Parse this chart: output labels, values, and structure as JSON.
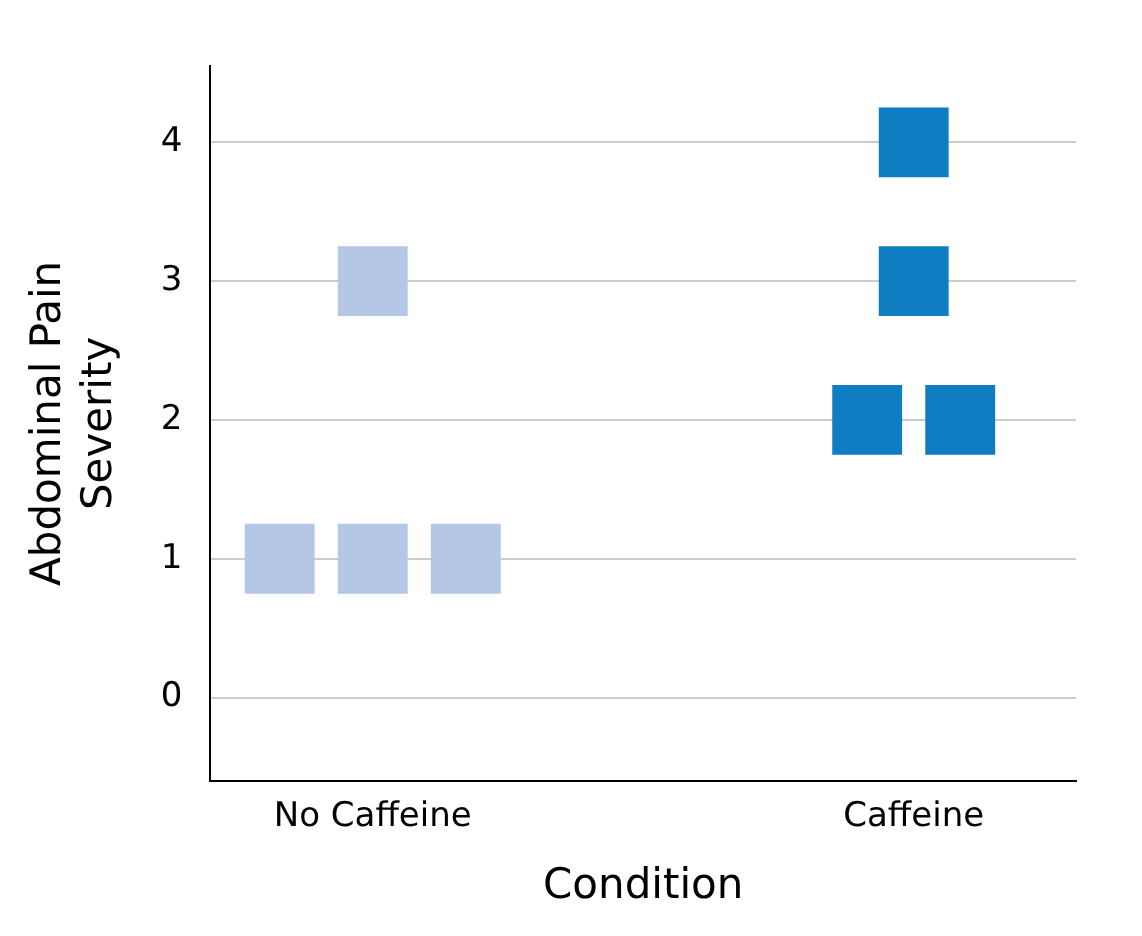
{
  "chart_data": {
    "type": "scatter",
    "xlabel": "Condition",
    "ylabel": "Abdominal Pain Severity",
    "categories": [
      "No Caffeine",
      "Caffeine"
    ],
    "series": [
      {
        "x": [
          "No Caffeine",
          "No Caffeine",
          "No Caffeine",
          "No Caffeine"
        ],
        "values": [
          1,
          1,
          1,
          3
        ],
        "color": "#b4c7e7"
      },
      {
        "x": [
          "Caffeine",
          "Caffeine",
          "Caffeine",
          "Caffeine"
        ],
        "values": [
          2,
          2,
          3,
          4
        ],
        "color": "#0f7dc2"
      }
    ],
    "ylim": [
      -0.6,
      4.55
    ],
    "yticks": [
      0,
      1,
      2,
      3,
      4
    ],
    "grid": "y",
    "marker": "square",
    "legend": false
  }
}
